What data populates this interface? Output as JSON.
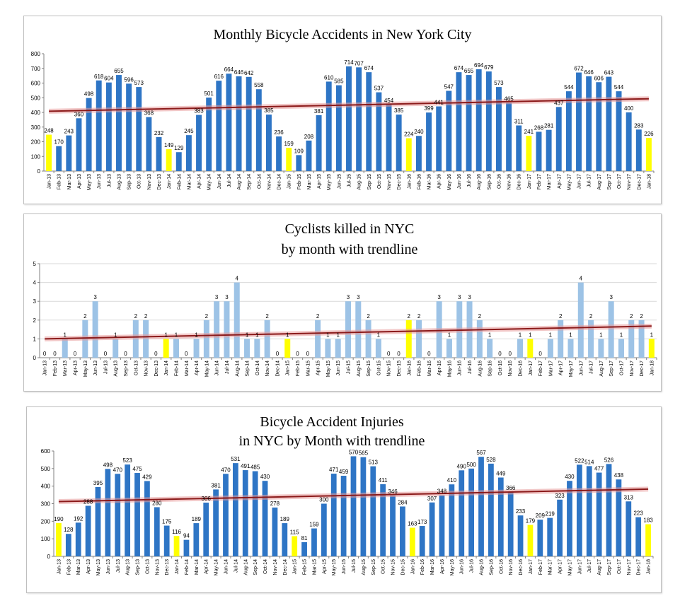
{
  "chart_data": [
    {
      "type": "bar",
      "title": "Monthly Bicycle Accidents in New York City",
      "subtitle": "",
      "categories": [
        "Jan-13",
        "Feb-13",
        "Mar-13",
        "Apr-13",
        "May-13",
        "Jun-13",
        "Jul-13",
        "Aug-13",
        "Sep-13",
        "Oct-13",
        "Nov-13",
        "Dec-13",
        "Jan-14",
        "Feb-14",
        "Mar-14",
        "Apr-14",
        "May-14",
        "Jun-14",
        "Jul-14",
        "Aug-14",
        "Sep-14",
        "Oct-14",
        "Nov-14",
        "Dec-14",
        "Jan-15",
        "Feb-15",
        "Mar-15",
        "Apr-15",
        "May-15",
        "Jun-15",
        "Jul-15",
        "Aug-15",
        "Sep-15",
        "Oct-15",
        "Nov-15",
        "Dec-15",
        "Jan-16",
        "Feb-16",
        "Mar-16",
        "Apr-16",
        "May-16",
        "Jun-16",
        "Jul-16",
        "Aug-16",
        "Sep-16",
        "Oct-16",
        "Nov-16",
        "Dec-16",
        "Jan-17",
        "Feb-17",
        "Mar-17",
        "Apr-17",
        "May-17",
        "Jun-17",
        "Jul-17",
        "Aug-17",
        "Sep-17",
        "Oct-17",
        "Nov-17",
        "Dec-17",
        "Jan-18"
      ],
      "values": [
        248,
        170,
        243,
        360,
        498,
        618,
        604,
        655,
        596,
        573,
        368,
        232,
        149,
        129,
        245,
        383,
        501,
        616,
        664,
        646,
        642,
        558,
        385,
        236,
        159,
        109,
        208,
        381,
        610,
        585,
        714,
        707,
        674,
        537,
        454,
        385,
        224,
        240,
        399,
        441,
        547,
        674,
        655,
        694,
        679,
        573,
        465,
        311,
        241,
        268,
        281,
        437,
        544,
        672,
        646,
        606,
        643,
        544,
        400,
        283,
        226
      ],
      "ylim": [
        0,
        800
      ],
      "yticks": [
        0,
        100,
        200,
        300,
        400,
        500,
        600,
        700,
        800
      ],
      "trend": [
        408,
        493
      ],
      "highlight_color": "#ffff00",
      "bar_color": "#2e75c5",
      "trend_color": "#8b1a1a",
      "grid": false
    },
    {
      "type": "bar",
      "title": "Cyclists killed in NYC",
      "subtitle": "by month with trendline",
      "categories": [
        "Jan-13",
        "Feb-13",
        "Mar-13",
        "Apr-13",
        "May-13",
        "Jun-13",
        "Jul-13",
        "Aug-13",
        "Sep-13",
        "Oct-13",
        "Nov-13",
        "Dec-13",
        "Jan-14",
        "Feb-14",
        "Mar-14",
        "Apr-14",
        "May-14",
        "Jun-14",
        "Jul-14",
        "Aug-14",
        "Sep-14",
        "Oct-14",
        "Nov-14",
        "Dec-14",
        "Jan-15",
        "Feb-15",
        "Mar-15",
        "Apr-15",
        "May-15",
        "Jun-15",
        "Jul-15",
        "Aug-15",
        "Sep-15",
        "Oct-15",
        "Nov-15",
        "Dec-15",
        "Jan-16",
        "Feb-16",
        "Mar-16",
        "Apr-16",
        "May-16",
        "Jun-16",
        "Jul-16",
        "Aug-16",
        "Sep-16",
        "Oct-16",
        "Nov-16",
        "Dec-16",
        "Jan-17",
        "Feb-17",
        "Mar-17",
        "Apr-17",
        "May-17",
        "Jun-17",
        "Jul-17",
        "Aug-17",
        "Sep-17",
        "Oct-17",
        "Nov-17",
        "Dec-17",
        "Jan-18"
      ],
      "values": [
        0,
        0,
        1,
        0,
        2,
        3,
        0,
        1,
        0,
        2,
        2,
        0,
        1,
        1,
        0,
        1,
        2,
        3,
        3,
        4,
        1,
        1,
        2,
        0,
        1,
        0,
        0,
        2,
        1,
        1,
        3,
        3,
        2,
        1,
        0,
        0,
        2,
        2,
        0,
        3,
        1,
        3,
        3,
        2,
        1,
        0,
        0,
        1,
        1,
        0,
        1,
        2,
        1,
        4,
        2,
        1,
        3,
        1,
        2,
        2,
        1
      ],
      "ylim": [
        0,
        5
      ],
      "yticks": [
        0,
        1,
        2,
        3,
        4,
        5
      ],
      "trend": [
        1.0,
        1.68
      ],
      "highlight_color": "#ffff00",
      "bar_color": "#9dc3e6",
      "trend_color": "#8b1a1a",
      "grid": true
    },
    {
      "type": "bar",
      "title": "Bicycle Accident Injuries",
      "subtitle": "in NYC by Month with trendline",
      "categories": [
        "Jan-13",
        "Feb-13",
        "Mar-13",
        "Apr-13",
        "May-13",
        "Jun-13",
        "Jul-13",
        "Aug-13",
        "Sep-13",
        "Oct-13",
        "Nov-13",
        "Dec-13",
        "Jan-14",
        "Feb-14",
        "Mar-14",
        "Apr-14",
        "May-14",
        "Jun-14",
        "Jul-14",
        "Aug-14",
        "Sep-14",
        "Oct-14",
        "Nov-14",
        "Dec-14",
        "Jan-15",
        "Feb-15",
        "Mar-15",
        "Apr-15",
        "May-15",
        "Jun-15",
        "Jul-15",
        "Aug-15",
        "Sep-15",
        "Oct-15",
        "Nov-15",
        "Dec-15",
        "Jan-16",
        "Feb-16",
        "Mar-16",
        "Apr-16",
        "May-16",
        "Jun-16",
        "Jul-16",
        "Aug-16",
        "Sep-16",
        "Oct-16",
        "Nov-16",
        "Dec-16",
        "Jan-17",
        "Feb-17",
        "Mar-17",
        "Apr-17",
        "May-17",
        "Jun-17",
        "Jul-17",
        "Aug-17",
        "Sep-17",
        "Oct-17",
        "Nov-17",
        "Dec-17",
        "Jan-18"
      ],
      "values": [
        190,
        128,
        192,
        288,
        395,
        498,
        470,
        523,
        475,
        429,
        280,
        175,
        116,
        94,
        189,
        306,
        381,
        470,
        531,
        491,
        485,
        430,
        278,
        189,
        115,
        81,
        159,
        300,
        471,
        459,
        570,
        565,
        513,
        411,
        346,
        284,
        163,
        173,
        307,
        348,
        410,
        490,
        500,
        567,
        528,
        449,
        366,
        233,
        179,
        209,
        219,
        323,
        430,
        522,
        514,
        477,
        526,
        438,
        313,
        223,
        183
      ],
      "ylim": [
        0,
        600
      ],
      "yticks": [
        0,
        100,
        200,
        300,
        400,
        500,
        600
      ],
      "trend": [
        312,
        383
      ],
      "highlight_color": "#ffff00",
      "bar_color": "#2e75c5",
      "trend_color": "#8b1a1a",
      "grid": false
    }
  ]
}
